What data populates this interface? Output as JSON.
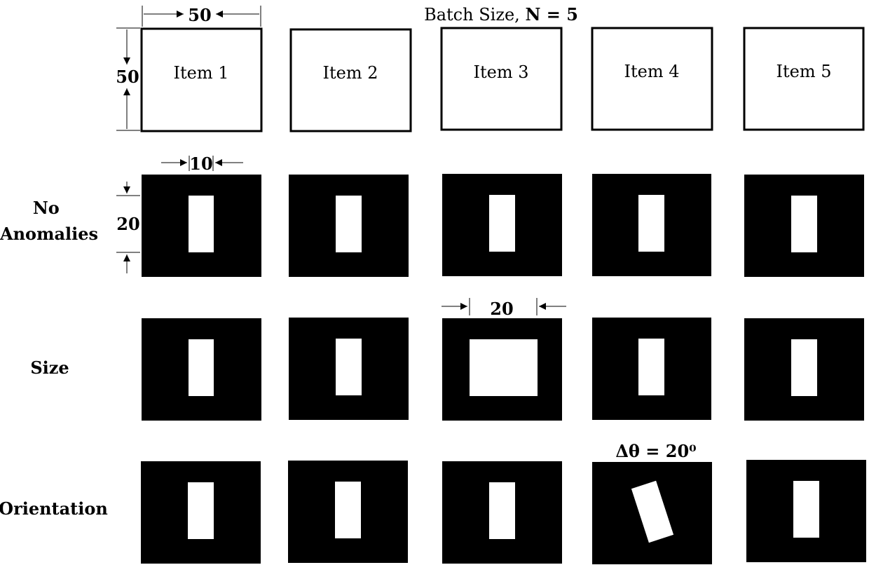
{
  "header": {
    "batch_label_prefix": "Batch Size, ",
    "batch_label_var": "N = 5"
  },
  "items": [
    "Item 1",
    "Item 2",
    "Item 3",
    "Item 4",
    "Item 5"
  ],
  "rows": [
    {
      "label_lines": [
        "No",
        "Anomalies"
      ]
    },
    {
      "label_lines": [
        "Size"
      ]
    },
    {
      "label_lines": [
        "Orientation"
      ]
    }
  ],
  "dimensions": {
    "item_width": "50",
    "item_height": "50",
    "bar_width": "10",
    "bar_height": "20",
    "size_anomaly_width": "20",
    "orientation_delta": "Δθ = 20⁰"
  },
  "colors": {
    "background": "#000000",
    "feature": "#ffffff",
    "outline": "#000000"
  }
}
